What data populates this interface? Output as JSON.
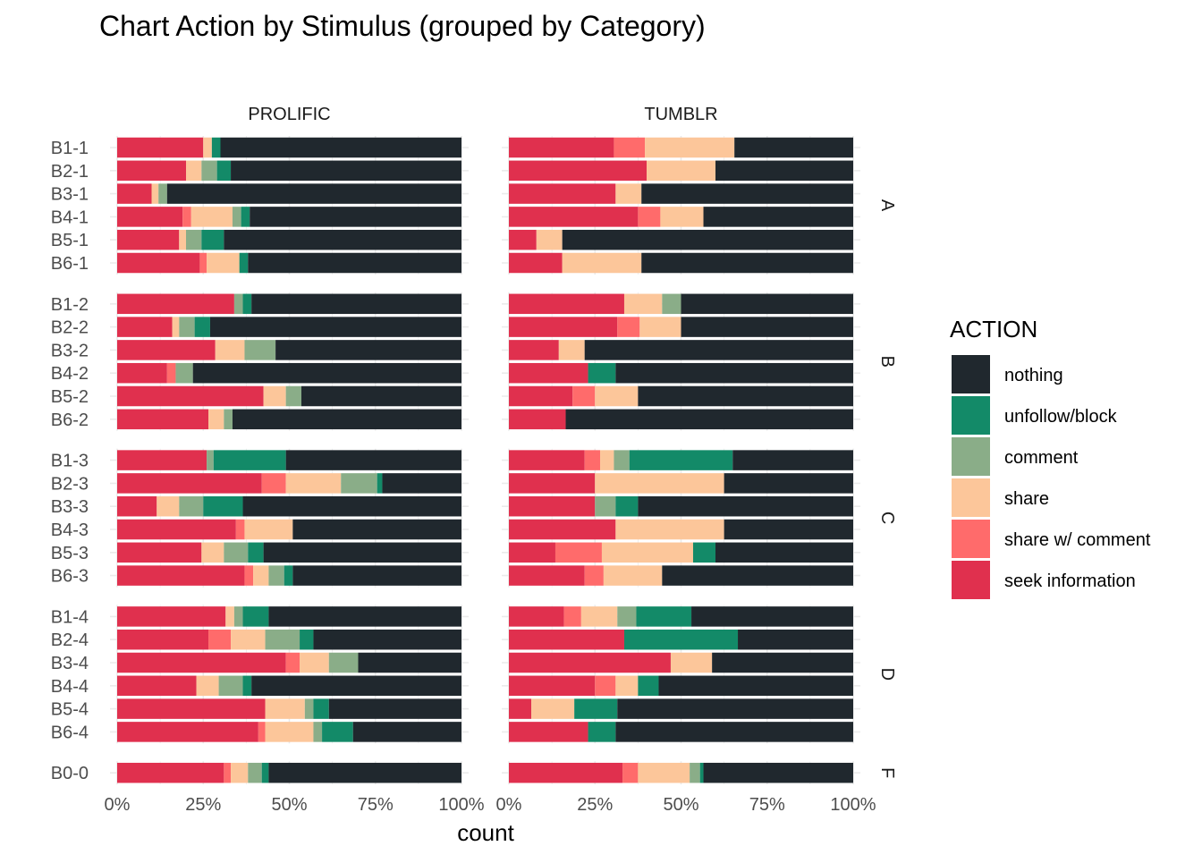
{
  "chart_data": {
    "type": "bar",
    "orientation": "horizontal",
    "stacked": "percent",
    "title": "Chart Action by Stimulus (grouped by Category)",
    "xlabel": "count",
    "ylabel": "",
    "xlim": [
      0,
      100
    ],
    "x_ticks": [
      "0%",
      "25%",
      "50%",
      "75%",
      "100%"
    ],
    "grid": true,
    "legend": {
      "title": "ACTION",
      "position": "right",
      "entries": [
        "nothing",
        "unfollow/block",
        "comment",
        "share",
        "share w/ comment",
        "seek information"
      ]
    },
    "action_order": [
      "seek information",
      "share w/ comment",
      "share",
      "comment",
      "unfollow/block",
      "nothing"
    ],
    "colors": {
      "seek information": "#e0304e",
      "share w/ comment": "#ff6b6b",
      "share": "#fcc69a",
      "comment": "#8aad88",
      "unfollow/block": "#138a68",
      "nothing": "#20282e"
    },
    "columns": [
      "PROLIFIC",
      "TUMBLR"
    ],
    "categories": [
      {
        "name": "A",
        "rows": [
          {
            "stimulus": "B1-1",
            "PROLIFIC": [
              25,
              0,
              2.5,
              0,
              2.5,
              70
            ],
            "TUMBLR": [
              30.5,
              9,
              26,
              0,
              0,
              34.5
            ]
          },
          {
            "stimulus": "B2-1",
            "PROLIFIC": [
              20,
              0,
              4.5,
              4.5,
              4,
              67
            ],
            "TUMBLR": [
              40,
              0,
              20,
              0,
              0,
              40
            ]
          },
          {
            "stimulus": "B3-1",
            "PROLIFIC": [
              10,
              0,
              2,
              2.5,
              0,
              85.5
            ],
            "TUMBLR": [
              31,
              0,
              7.5,
              0,
              0,
              61.5
            ]
          },
          {
            "stimulus": "B4-1",
            "PROLIFIC": [
              19,
              2.5,
              12,
              2.5,
              2.5,
              61.5
            ],
            "TUMBLR": [
              37.5,
              6.5,
              12.5,
              0,
              0,
              43.5
            ]
          },
          {
            "stimulus": "B5-1",
            "PROLIFIC": [
              18,
              0,
              2,
              4.5,
              6.5,
              69
            ],
            "TUMBLR": [
              8,
              0,
              7.5,
              0,
              0,
              84.5
            ]
          },
          {
            "stimulus": "B6-1",
            "PROLIFIC": [
              24,
              2,
              9.5,
              0,
              2.5,
              62
            ],
            "TUMBLR": [
              15.5,
              0,
              23,
              0,
              0,
              61.5
            ]
          }
        ]
      },
      {
        "name": "B",
        "rows": [
          {
            "stimulus": "B1-2",
            "PROLIFIC": [
              34,
              0,
              0,
              2.5,
              2.5,
              61
            ],
            "TUMBLR": [
              33.5,
              0,
              11,
              5.5,
              0,
              50
            ]
          },
          {
            "stimulus": "B2-2",
            "PROLIFIC": [
              16,
              0,
              2,
              4.5,
              4.5,
              73
            ],
            "TUMBLR": [
              31.5,
              6.5,
              12,
              0,
              0,
              50
            ]
          },
          {
            "stimulus": "B3-2",
            "PROLIFIC": [
              28.5,
              0,
              8.5,
              9,
              0,
              54
            ],
            "TUMBLR": [
              14.5,
              0,
              7.5,
              0,
              0,
              78
            ]
          },
          {
            "stimulus": "B4-2",
            "PROLIFIC": [
              14.5,
              2.5,
              0,
              5,
              0,
              78
            ],
            "TUMBLR": [
              23,
              0,
              0,
              0,
              8,
              69
            ]
          },
          {
            "stimulus": "B5-2",
            "PROLIFIC": [
              42.5,
              0,
              6.5,
              4.5,
              0,
              46.5
            ],
            "TUMBLR": [
              18.5,
              6.5,
              12.5,
              0,
              0,
              62.5
            ]
          },
          {
            "stimulus": "B6-2",
            "PROLIFIC": [
              26.5,
              0,
              4.5,
              2.5,
              0,
              66.5
            ],
            "TUMBLR": [
              16.5,
              0,
              0,
              0,
              0,
              83.5
            ]
          }
        ]
      },
      {
        "name": "C",
        "rows": [
          {
            "stimulus": "B1-3",
            "PROLIFIC": [
              26,
              0,
              0,
              2,
              21,
              51
            ],
            "TUMBLR": [
              22,
              4.5,
              4,
              4.5,
              30,
              35
            ]
          },
          {
            "stimulus": "B2-3",
            "PROLIFIC": [
              42,
              7,
              16,
              10.5,
              1.5,
              23
            ],
            "TUMBLR": [
              25,
              0,
              37.5,
              0,
              0,
              37.5
            ]
          },
          {
            "stimulus": "B3-3",
            "PROLIFIC": [
              11.5,
              0,
              6.5,
              7,
              11.5,
              63.5
            ],
            "TUMBLR": [
              25,
              0,
              0,
              6,
              6.5,
              62.5
            ]
          },
          {
            "stimulus": "B4-3",
            "PROLIFIC": [
              34.5,
              2.5,
              14,
              0,
              0,
              49
            ],
            "TUMBLR": [
              31,
              0,
              31.5,
              0,
              0,
              37.5
            ]
          },
          {
            "stimulus": "B5-3",
            "PROLIFIC": [
              24.5,
              0,
              6.5,
              7,
              4.5,
              57.5
            ],
            "TUMBLR": [
              13.5,
              13.5,
              26.5,
              0,
              6.5,
              40
            ]
          },
          {
            "stimulus": "B6-3",
            "PROLIFIC": [
              37,
              2.5,
              4.5,
              4.5,
              2.5,
              49
            ],
            "TUMBLR": [
              22,
              5.5,
              17,
              0,
              0,
              55.5
            ]
          }
        ]
      },
      {
        "name": "D",
        "rows": [
          {
            "stimulus": "B1-4",
            "PROLIFIC": [
              31.5,
              0,
              2.5,
              2.5,
              7.5,
              56
            ],
            "TUMBLR": [
              16,
              5,
              10.5,
              5.5,
              16,
              47
            ]
          },
          {
            "stimulus": "B2-4",
            "PROLIFIC": [
              26.5,
              6.5,
              10,
              10,
              4,
              43
            ],
            "TUMBLR": [
              33.5,
              0,
              0,
              0,
              33,
              33.5
            ]
          },
          {
            "stimulus": "B3-4",
            "PROLIFIC": [
              49,
              4,
              8.5,
              8.5,
              0,
              30
            ],
            "TUMBLR": [
              47,
              0,
              12,
              0,
              0,
              41
            ]
          },
          {
            "stimulus": "B4-4",
            "PROLIFIC": [
              23,
              0,
              6.5,
              7,
              2.5,
              61
            ],
            "TUMBLR": [
              25,
              6,
              6.5,
              0,
              6,
              56.5
            ]
          },
          {
            "stimulus": "B5-4",
            "PROLIFIC": [
              43,
              0,
              11.5,
              2.5,
              4.5,
              38.5
            ],
            "TUMBLR": [
              6.5,
              0,
              12.5,
              0,
              12.5,
              68.5
            ]
          },
          {
            "stimulus": "B6-4",
            "PROLIFIC": [
              41,
              2,
              14,
              2.5,
              9,
              31.5
            ],
            "TUMBLR": [
              23,
              0,
              0,
              0,
              8,
              69
            ]
          }
        ]
      },
      {
        "name": "F",
        "rows": [
          {
            "stimulus": "B0-0",
            "PROLIFIC": [
              31,
              2,
              5,
              4,
              2,
              56
            ],
            "TUMBLR": [
              33,
              4.5,
              15,
              3,
              1,
              43.5
            ]
          }
        ]
      }
    ]
  }
}
